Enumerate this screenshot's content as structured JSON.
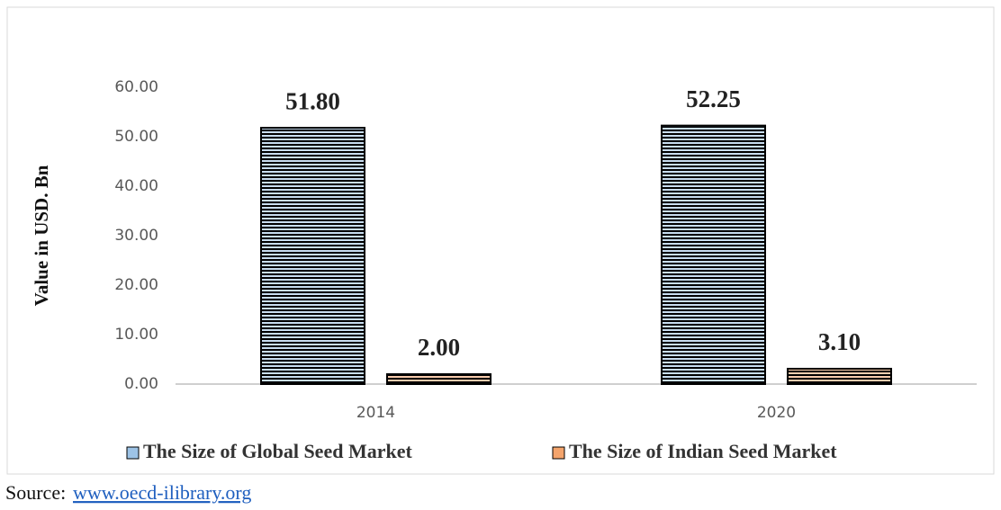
{
  "chart_data": {
    "type": "bar",
    "y_label": "Value in USD. Bn",
    "categories": [
      "2014",
      "2020"
    ],
    "series": [
      {
        "name": "The Size of Global Seed Market",
        "color": "#9dc3e6",
        "values": [
          51.8,
          52.25
        ],
        "value_labels": [
          "51.80",
          "52.25"
        ]
      },
      {
        "name": "The Size of Indian Seed Market",
        "color": "#f4a46c",
        "values": [
          2,
          3.1
        ],
        "value_labels": [
          "2.00",
          "3.10"
        ]
      }
    ],
    "ylim": [
      0,
      60
    ],
    "yticks": [
      {
        "value": 0,
        "label": "0.00"
      },
      {
        "value": 10,
        "label": "10.00"
      },
      {
        "value": 20,
        "label": "20.00"
      },
      {
        "value": 30,
        "label": "30.00"
      },
      {
        "value": 40,
        "label": "40.00"
      },
      {
        "value": 50,
        "label": "50.00"
      },
      {
        "value": 60,
        "label": "60.00"
      }
    ],
    "grid": false,
    "legend": "bottom",
    "source": {
      "label": "Source:",
      "url": "www.oecd-ilibrary.org"
    }
  }
}
